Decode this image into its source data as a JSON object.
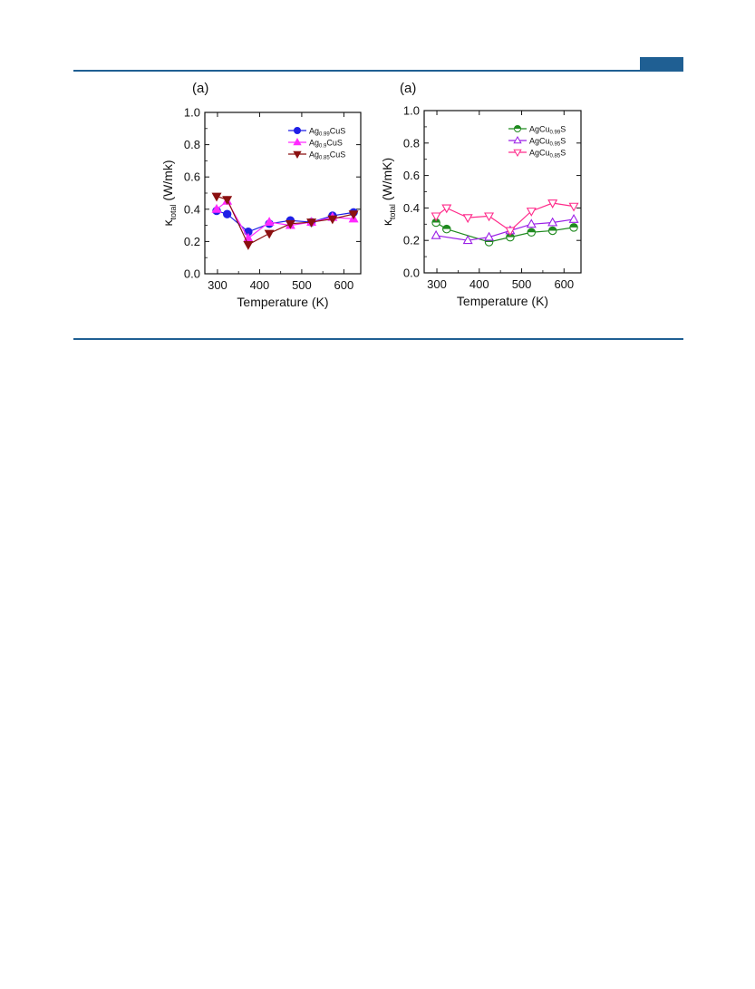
{
  "page": {
    "accent_color": "#1f5f93",
    "panel_labels": [
      "(a)",
      "(a)"
    ]
  },
  "chart_data": [
    {
      "type": "line",
      "xlabel": "Temperature (K)",
      "ylabel_main": "κ",
      "ylabel_sub": "total",
      "ylabel_unit": " (W/mk)",
      "xlim": [
        270,
        640
      ],
      "ylim": [
        0.0,
        1.0
      ],
      "xticks": [
        300,
        400,
        500,
        600
      ],
      "yticks": [
        0.0,
        0.2,
        0.4,
        0.6,
        0.8,
        1.0
      ],
      "xtick_labels": [
        "300",
        "400",
        "500",
        "600"
      ],
      "ytick_labels": [
        "0.0",
        "0.2",
        "0.4",
        "0.6",
        "0.8",
        "1.0"
      ],
      "legend_position": "top-right",
      "series": [
        {
          "name": "Ag0.99CuS",
          "name_base": "Ag",
          "name_sub": "0.99",
          "name_tail": "CuS",
          "color": "#1f1fe6",
          "marker": "circle",
          "filled": true,
          "x": [
            298,
            323,
            373,
            423,
            473,
            523,
            573,
            623
          ],
          "y": [
            0.39,
            0.37,
            0.26,
            0.31,
            0.33,
            0.32,
            0.36,
            0.38
          ]
        },
        {
          "name": "Ag0.9CuS",
          "name_base": "Ag",
          "name_sub": "0.9",
          "name_tail": "CuS",
          "color": "#ff2aff",
          "marker": "triangle-up",
          "filled": true,
          "x": [
            298,
            323,
            373,
            423,
            473,
            523,
            573,
            623
          ],
          "y": [
            0.4,
            0.45,
            0.22,
            0.32,
            0.3,
            0.32,
            0.35,
            0.34
          ]
        },
        {
          "name": "Ag0.85CuS",
          "name_base": "Ag",
          "name_sub": "0.85",
          "name_tail": "CuS",
          "color": "#8b1010",
          "marker": "triangle-down",
          "filled": true,
          "x": [
            298,
            323,
            373,
            423,
            473,
            523,
            573,
            623
          ],
          "y": [
            0.48,
            0.46,
            0.18,
            0.25,
            0.31,
            0.32,
            0.34,
            0.37
          ]
        }
      ]
    },
    {
      "type": "line",
      "xlabel": "Temperature (K)",
      "ylabel_main": "κ",
      "ylabel_sub": "total",
      "ylabel_unit": " (W/mK)",
      "xlim": [
        270,
        640
      ],
      "ylim": [
        0.0,
        1.0
      ],
      "xticks": [
        300,
        400,
        500,
        600
      ],
      "yticks": [
        0.0,
        0.2,
        0.4,
        0.6,
        0.8,
        1.0
      ],
      "xtick_labels": [
        "300",
        "400",
        "500",
        "600"
      ],
      "ytick_labels": [
        "0.0",
        "0.2",
        "0.4",
        "0.6",
        "0.8",
        "1.0"
      ],
      "legend_position": "top-right",
      "series": [
        {
          "name": "AgCu0.99S",
          "name_base": "AgCu",
          "name_sub": "0.99",
          "name_tail": "S",
          "color": "#1f8a1f",
          "marker": "circle",
          "filled": false,
          "x": [
            298,
            323,
            423,
            473,
            523,
            573,
            623
          ],
          "y": [
            0.31,
            0.27,
            0.19,
            0.22,
            0.25,
            0.26,
            0.28
          ]
        },
        {
          "name": "AgCu0.95S",
          "name_base": "AgCu",
          "name_sub": "0.95",
          "name_tail": "S",
          "color": "#9a1fe6",
          "marker": "triangle-up",
          "filled": false,
          "x": [
            298,
            373,
            423,
            473,
            523,
            573,
            623
          ],
          "y": [
            0.23,
            0.2,
            0.22,
            0.26,
            0.3,
            0.31,
            0.33
          ]
        },
        {
          "name": "AgCu0.85S",
          "name_base": "AgCu",
          "name_sub": "0.85",
          "name_tail": "S",
          "color": "#ff2a8a",
          "marker": "triangle-down",
          "filled": false,
          "x": [
            298,
            323,
            373,
            423,
            473,
            523,
            573,
            623
          ],
          "y": [
            0.35,
            0.4,
            0.34,
            0.35,
            0.26,
            0.38,
            0.43,
            0.41
          ]
        }
      ]
    }
  ]
}
